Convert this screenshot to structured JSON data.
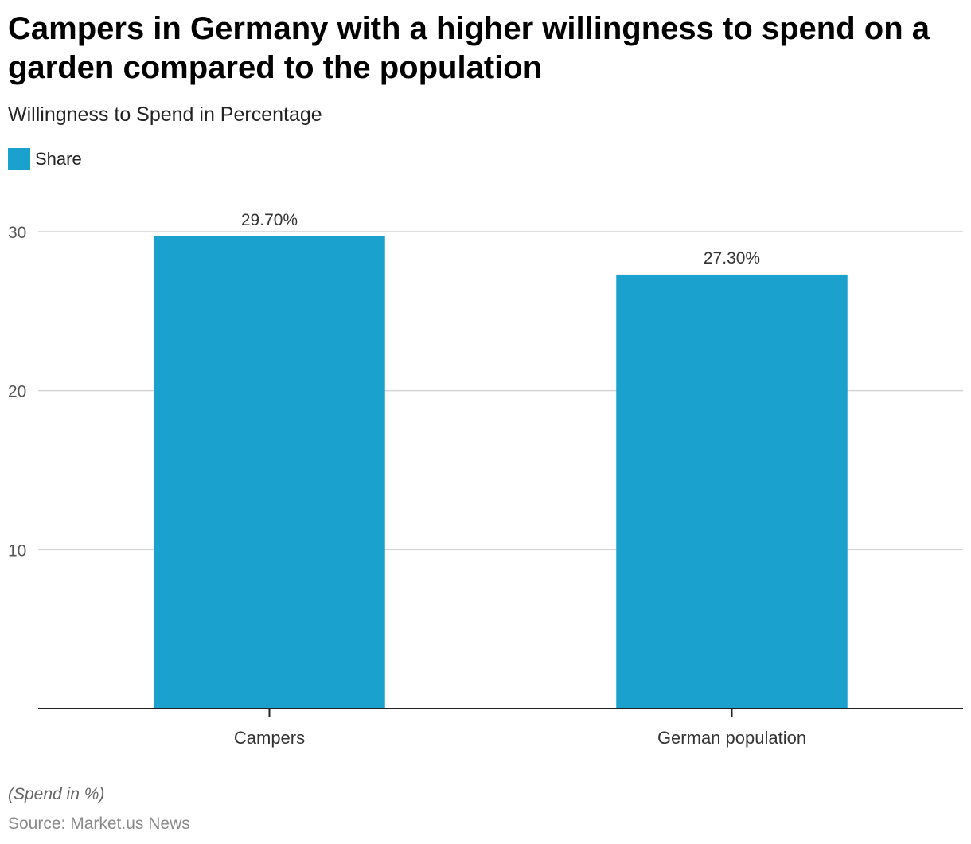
{
  "title": "Campers in Germany with a higher willingness to spend on a garden compared to the population",
  "subtitle": "Willingness to Spend in Percentage",
  "legend": {
    "label": "Share",
    "color": "#1aa1cd"
  },
  "note": "(Spend in %)",
  "source": "Source: Market.us News",
  "chart_data": {
    "type": "bar",
    "title": "Campers in Germany with a higher willingness to spend on a garden compared to the population",
    "subtitle": "Willingness to Spend in Percentage",
    "xlabel": "",
    "ylabel": "",
    "categories": [
      "Campers",
      "German population"
    ],
    "series": [
      {
        "name": "Share",
        "values": [
          29.7,
          27.3
        ],
        "labels": [
          "29.70%",
          "27.30%"
        ],
        "color": "#1aa1cd"
      }
    ],
    "ylim": [
      0,
      30
    ],
    "yticks": [
      10,
      20,
      30
    ],
    "grid": true,
    "legend_position": "top-left"
  }
}
